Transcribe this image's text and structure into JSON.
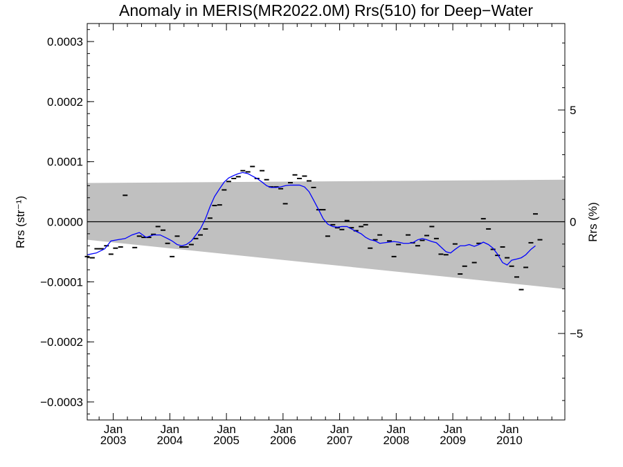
{
  "chart_data": {
    "type": "scatter",
    "title": "Anomaly in MERIS(MR2022.0M) Rrs(510) for Deep−Water",
    "ylabel_left": "Rrs (str⁻¹)",
    "ylabel_right": "Rrs (%)",
    "ylim_left": [
      -0.00033,
      0.00033
    ],
    "ylim_right": [
      -8.87,
      8.87
    ],
    "xlim": [
      2002.54,
      2010.98
    ],
    "y_ticks_left": [
      {
        "value": 0.0003,
        "label": "0.0003"
      },
      {
        "value": 0.0002,
        "label": "0.0002"
      },
      {
        "value": 0.0001,
        "label": "0.0001"
      },
      {
        "value": 0.0,
        "label": "0.0000"
      },
      {
        "value": -0.0001,
        "label": "−0.0001"
      },
      {
        "value": -0.0002,
        "label": "−0.0002"
      },
      {
        "value": -0.0003,
        "label": "−0.0003"
      }
    ],
    "y_ticks_right": [
      {
        "value": 5,
        "label": "5"
      },
      {
        "value": 0,
        "label": "0"
      },
      {
        "value": -5,
        "label": "−5"
      }
    ],
    "x_ticks": [
      {
        "value": 2003.0,
        "month": "Jan",
        "year": "2003"
      },
      {
        "value": 2004.0,
        "month": "Jan",
        "year": "2004"
      },
      {
        "value": 2005.0,
        "month": "Jan",
        "year": "2005"
      },
      {
        "value": 2006.0,
        "month": "Jan",
        "year": "2006"
      },
      {
        "value": 2007.0,
        "month": "Jan",
        "year": "2007"
      },
      {
        "value": 2008.0,
        "month": "Jan",
        "year": "2008"
      },
      {
        "value": 2009.0,
        "month": "Jan",
        "year": "2009"
      },
      {
        "value": 2010.0,
        "month": "Jan",
        "year": "2010"
      }
    ],
    "band": {
      "color": "#c0c0c0",
      "upper": [
        [
          2002.54,
          6.45e-05
        ],
        [
          2010.98,
          7e-05
        ]
      ],
      "lower": [
        [
          2002.54,
          -3e-05
        ],
        [
          2010.98,
          -0.000112
        ]
      ]
    },
    "zero_line": 0,
    "monthly_points": {
      "color": "#000000",
      "points": [
        [
          2002.54,
          -5.8e-05
        ],
        [
          2002.63,
          -6e-05
        ],
        [
          2002.71,
          -4.5e-05
        ],
        [
          2002.79,
          -4.5e-05
        ],
        [
          2002.88,
          -4e-05
        ],
        [
          2002.96,
          -5.4e-05
        ],
        [
          2003.04,
          -4.4e-05
        ],
        [
          2003.13,
          -4.2e-05
        ],
        [
          2003.21,
          4.4e-05
        ],
        [
          2003.38,
          -4.3e-05
        ],
        [
          2003.46,
          -2.4e-05
        ],
        [
          2003.54,
          -2.6e-05
        ],
        [
          2003.63,
          -2.6e-05
        ],
        [
          2003.71,
          -2.1e-05
        ],
        [
          2003.79,
          -8e-06
        ],
        [
          2003.88,
          -1.4e-05
        ],
        [
          2003.96,
          -3.6e-05
        ],
        [
          2004.04,
          -5.8e-05
        ],
        [
          2004.13,
          -2.4e-05
        ],
        [
          2004.21,
          -4.2e-05
        ],
        [
          2004.29,
          -4.2e-05
        ],
        [
          2004.38,
          -3.8e-05
        ],
        [
          2004.46,
          -2.8e-05
        ],
        [
          2004.54,
          -2.2e-05
        ],
        [
          2004.63,
          -1.2e-05
        ],
        [
          2004.71,
          6e-06
        ],
        [
          2004.79,
          2.7e-05
        ],
        [
          2004.88,
          2.8e-05
        ],
        [
          2004.96,
          5.3e-05
        ],
        [
          2005.04,
          6.7e-05
        ],
        [
          2005.13,
          7.2e-05
        ],
        [
          2005.21,
          7.5e-05
        ],
        [
          2005.29,
          8.5e-05
        ],
        [
          2005.38,
          8.3e-05
        ],
        [
          2005.46,
          9.2e-05
        ],
        [
          2005.54,
          7.2e-05
        ],
        [
          2005.63,
          8.5e-05
        ],
        [
          2005.71,
          7e-05
        ],
        [
          2005.79,
          5.8e-05
        ],
        [
          2005.88,
          5.8e-05
        ],
        [
          2005.96,
          5.5e-05
        ],
        [
          2006.04,
          3e-05
        ],
        [
          2006.13,
          6.5e-05
        ],
        [
          2006.21,
          7.8e-05
        ],
        [
          2006.29,
          7.2e-05
        ],
        [
          2006.38,
          7.6e-05
        ],
        [
          2006.46,
          6.8e-05
        ],
        [
          2006.54,
          5.7e-05
        ],
        [
          2006.63,
          2e-05
        ],
        [
          2006.71,
          2e-05
        ],
        [
          2006.79,
          -2.4e-05
        ],
        [
          2006.88,
          -5e-06
        ],
        [
          2006.96,
          -1e-05
        ],
        [
          2007.04,
          -1.3e-05
        ],
        [
          2007.13,
          2e-06
        ],
        [
          2007.21,
          -1e-05
        ],
        [
          2007.29,
          -1.5e-05
        ],
        [
          2007.38,
          -8e-06
        ],
        [
          2007.46,
          -5e-06
        ],
        [
          2007.54,
          -4.4e-05
        ],
        [
          2007.63,
          -3e-05
        ],
        [
          2007.71,
          -2.2e-05
        ],
        [
          2007.88,
          -3.2e-05
        ],
        [
          2007.96,
          -5.8e-05
        ],
        [
          2008.04,
          -3.8e-05
        ],
        [
          2008.21,
          -2.2e-05
        ],
        [
          2008.29,
          -3.5e-05
        ],
        [
          2008.38,
          -4e-05
        ],
        [
          2008.46,
          -3.1e-05
        ],
        [
          2008.54,
          -2.3e-05
        ],
        [
          2008.63,
          -8e-06
        ],
        [
          2008.71,
          -2.8e-05
        ],
        [
          2008.79,
          -5.4e-05
        ],
        [
          2008.88,
          -5.5e-05
        ],
        [
          2009.04,
          -3.7e-05
        ],
        [
          2009.13,
          -8.7e-05
        ],
        [
          2009.21,
          -7.4e-05
        ],
        [
          2009.38,
          -6.8e-05
        ],
        [
          2009.46,
          -3.6e-05
        ],
        [
          2009.54,
          5e-06
        ],
        [
          2009.63,
          -1.2e-05
        ],
        [
          2009.71,
          -4.6e-05
        ],
        [
          2009.79,
          -5.6e-05
        ],
        [
          2009.88,
          -4.2e-05
        ],
        [
          2009.96,
          -6e-05
        ],
        [
          2010.04,
          -7.4e-05
        ],
        [
          2010.13,
          -9.2e-05
        ],
        [
          2010.21,
          -0.000113
        ],
        [
          2010.29,
          -7.6e-05
        ],
        [
          2010.38,
          -3.5e-05
        ],
        [
          2010.46,
          1.3e-05
        ],
        [
          2010.54,
          -3e-05
        ]
      ]
    },
    "smoothed_series": {
      "color": "#0000ff",
      "points": [
        [
          2002.54,
          -5.5e-05
        ],
        [
          2002.7,
          -5.2e-05
        ],
        [
          2002.85,
          -4.5e-05
        ],
        [
          2002.96,
          -3.2e-05
        ],
        [
          2003.08,
          -3e-05
        ],
        [
          2003.21,
          -2.8e-05
        ],
        [
          2003.33,
          -2.2e-05
        ],
        [
          2003.46,
          -1.8e-05
        ],
        [
          2003.58,
          -2.6e-05
        ],
        [
          2003.71,
          -2.2e-05
        ],
        [
          2003.83,
          -2.2e-05
        ],
        [
          2003.96,
          -2.8e-05
        ],
        [
          2004.04,
          -3.2e-05
        ],
        [
          2004.13,
          -3.8e-05
        ],
        [
          2004.21,
          -4e-05
        ],
        [
          2004.29,
          -3.8e-05
        ],
        [
          2004.38,
          -3.2e-05
        ],
        [
          2004.46,
          -2.2e-05
        ],
        [
          2004.54,
          -1.2e-05
        ],
        [
          2004.63,
          5e-06
        ],
        [
          2004.71,
          2.5e-05
        ],
        [
          2004.79,
          4.2e-05
        ],
        [
          2004.88,
          5.5e-05
        ],
        [
          2004.96,
          6.6e-05
        ],
        [
          2005.04,
          7.3e-05
        ],
        [
          2005.13,
          7.7e-05
        ],
        [
          2005.21,
          8e-05
        ],
        [
          2005.29,
          8.2e-05
        ],
        [
          2005.38,
          8e-05
        ],
        [
          2005.46,
          7.6e-05
        ],
        [
          2005.54,
          7.2e-05
        ],
        [
          2005.63,
          6.6e-05
        ],
        [
          2005.71,
          6e-05
        ],
        [
          2005.79,
          5.7e-05
        ],
        [
          2005.88,
          5.7e-05
        ],
        [
          2005.96,
          5.8e-05
        ],
        [
          2006.04,
          6e-05
        ],
        [
          2006.13,
          6.1e-05
        ],
        [
          2006.21,
          6.1e-05
        ],
        [
          2006.29,
          6.1e-05
        ],
        [
          2006.38,
          5.8e-05
        ],
        [
          2006.46,
          5e-05
        ],
        [
          2006.54,
          3.6e-05
        ],
        [
          2006.63,
          2e-05
        ],
        [
          2006.71,
          5e-06
        ],
        [
          2006.79,
          -4e-06
        ],
        [
          2006.88,
          -8e-06
        ],
        [
          2006.96,
          -9e-06
        ],
        [
          2007.04,
          -8e-06
        ],
        [
          2007.13,
          -8e-06
        ],
        [
          2007.21,
          -1.2e-05
        ],
        [
          2007.29,
          -1.6e-05
        ],
        [
          2007.38,
          -2e-05
        ],
        [
          2007.46,
          -2.6e-05
        ],
        [
          2007.54,
          -3e-05
        ],
        [
          2007.63,
          -3.2e-05
        ],
        [
          2007.71,
          -3.6e-05
        ],
        [
          2007.79,
          -3.5e-05
        ],
        [
          2007.88,
          -3.4e-05
        ],
        [
          2007.96,
          -3.3e-05
        ],
        [
          2008.04,
          -3.4e-05
        ],
        [
          2008.13,
          -3.6e-05
        ],
        [
          2008.21,
          -3.6e-05
        ],
        [
          2008.29,
          -3.5e-05
        ],
        [
          2008.38,
          -3e-05
        ],
        [
          2008.46,
          -2.8e-05
        ],
        [
          2008.54,
          -3e-05
        ],
        [
          2008.63,
          -3.3e-05
        ],
        [
          2008.71,
          -3.5e-05
        ],
        [
          2008.79,
          -4.2e-05
        ],
        [
          2008.88,
          -5e-05
        ],
        [
          2008.96,
          -5.2e-05
        ],
        [
          2009.04,
          -4.6e-05
        ],
        [
          2009.13,
          -4e-05
        ],
        [
          2009.21,
          -4e-05
        ],
        [
          2009.29,
          -3.8e-05
        ],
        [
          2009.38,
          -4.1e-05
        ],
        [
          2009.46,
          -3.8e-05
        ],
        [
          2009.54,
          -3.4e-05
        ],
        [
          2009.63,
          -3.8e-05
        ],
        [
          2009.71,
          -4.4e-05
        ],
        [
          2009.79,
          -5.4e-05
        ],
        [
          2009.88,
          -6.8e-05
        ],
        [
          2009.96,
          -7.2e-05
        ],
        [
          2010.04,
          -6.4e-05
        ],
        [
          2010.13,
          -6.2e-05
        ],
        [
          2010.21,
          -6e-05
        ],
        [
          2010.29,
          -5.5e-05
        ],
        [
          2010.38,
          -4.6e-05
        ],
        [
          2010.46,
          -4e-05
        ]
      ]
    }
  }
}
